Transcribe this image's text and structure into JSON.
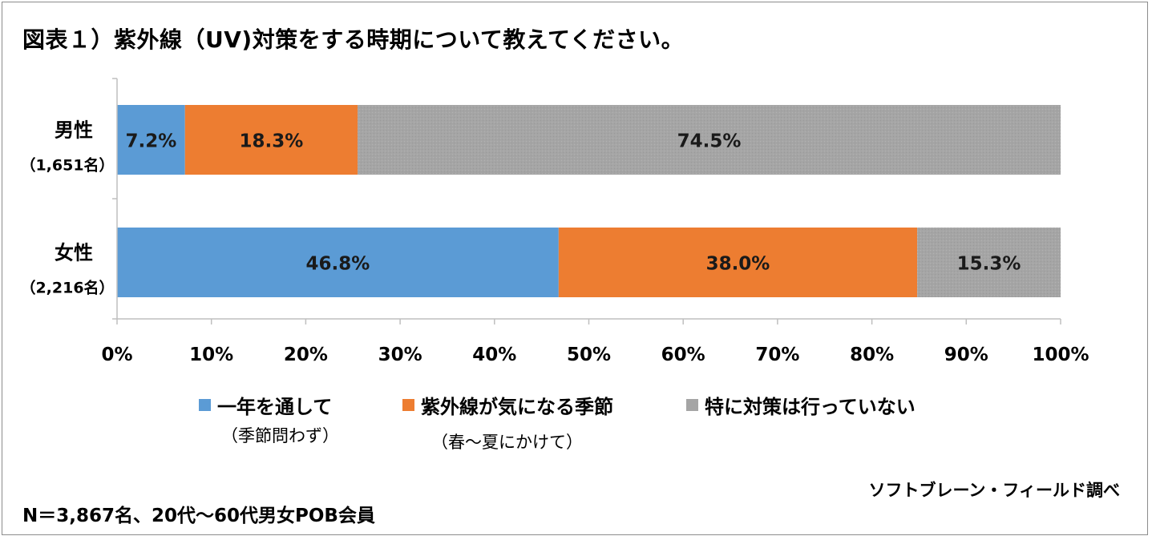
{
  "title": "図表１）紫外線（UV)対策をする時期について教えてください。",
  "chart_data": {
    "type": "bar",
    "orientation": "horizontal",
    "stacked": true,
    "categories": [
      {
        "name": "男性",
        "count": "（1,651名）"
      },
      {
        "name": "女性",
        "count": "（2,216名）"
      }
    ],
    "series": [
      {
        "name": "一年を通して",
        "sub": "（季節問わず）",
        "color": "#5b9bd5",
        "values": [
          7.2,
          46.8
        ],
        "labels": [
          "7.2%",
          "46.8%"
        ]
      },
      {
        "name": "紫外線が気になる季節",
        "sub": "（春〜夏にかけて）",
        "color": "#ed7d31",
        "values": [
          18.3,
          38.0
        ],
        "labels": [
          "18.3%",
          "38.0%"
        ]
      },
      {
        "name": "特に対策は行っていない",
        "sub": "",
        "color": "#a5a5a5",
        "values": [
          74.5,
          15.3
        ],
        "labels": [
          "74.5%",
          "15.3%"
        ]
      }
    ],
    "xlim": [
      0,
      100
    ],
    "xticks": [
      "0%",
      "10%",
      "20%",
      "30%",
      "40%",
      "50%",
      "60%",
      "70%",
      "80%",
      "90%",
      "100%"
    ],
    "grid": false,
    "legend_position": "bottom"
  },
  "source": "ソフトブレーン・フィールド調べ",
  "note": "N＝3,867名、20代〜60代男女POB会員"
}
